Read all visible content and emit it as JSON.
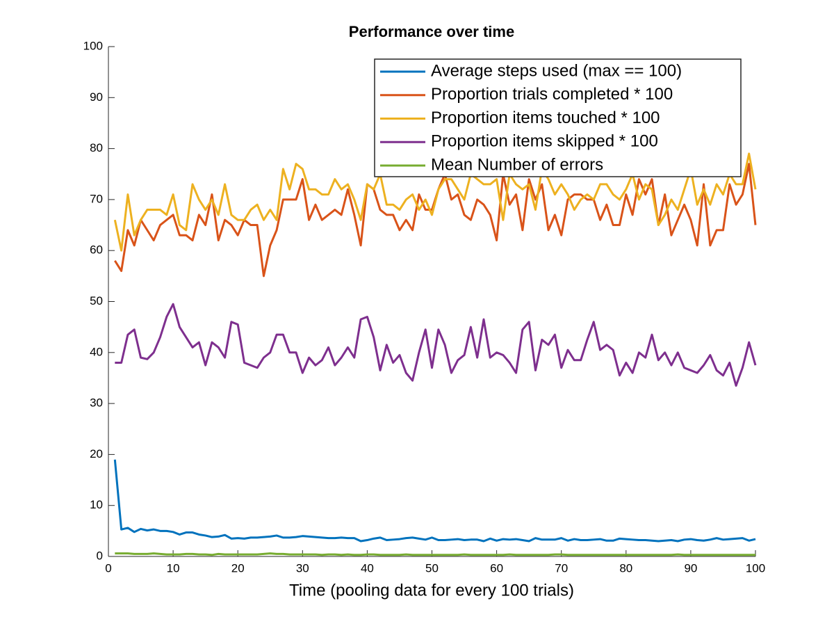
{
  "chart_data": {
    "type": "line",
    "title": "Performance over time",
    "x_label": "Time (pooling data for every 100 trials)",
    "x": [
      1,
      2,
      3,
      4,
      5,
      6,
      7,
      8,
      9,
      10,
      11,
      12,
      13,
      14,
      15,
      16,
      17,
      18,
      19,
      20,
      21,
      22,
      23,
      24,
      25,
      26,
      27,
      28,
      29,
      30,
      31,
      32,
      33,
      34,
      35,
      36,
      37,
      38,
      39,
      40,
      41,
      42,
      43,
      44,
      45,
      46,
      47,
      48,
      49,
      50,
      51,
      52,
      53,
      54,
      55,
      56,
      57,
      58,
      59,
      60,
      61,
      62,
      63,
      64,
      65,
      66,
      67,
      68,
      69,
      70,
      71,
      72,
      73,
      74,
      75,
      76,
      77,
      78,
      79,
      80,
      81,
      82,
      83,
      84,
      85,
      86,
      87,
      88,
      89,
      90,
      91,
      92,
      93,
      94,
      95,
      96,
      97,
      98,
      99,
      100
    ],
    "series": [
      {
        "name": "Average steps used (max == 100)",
        "color": "#0072bd",
        "values": [
          19,
          5.3,
          5.6,
          4.8,
          5.4,
          5.1,
          5.3,
          5,
          5,
          4.8,
          4.3,
          4.7,
          4.7,
          4.3,
          4.1,
          3.8,
          3.9,
          4.2,
          3.5,
          3.6,
          3.5,
          3.7,
          3.7,
          3.8,
          3.9,
          4.1,
          3.7,
          3.7,
          3.8,
          4,
          3.9,
          3.8,
          3.7,
          3.6,
          3.6,
          3.7,
          3.6,
          3.6,
          3,
          3.2,
          3.5,
          3.7,
          3.2,
          3.3,
          3.4,
          3.6,
          3.7,
          3.5,
          3.3,
          3.7,
          3.2,
          3.2,
          3.3,
          3.4,
          3.2,
          3.3,
          3.3,
          3,
          3.5,
          3.1,
          3.4,
          3.3,
          3.4,
          3.2,
          3,
          3.6,
          3.3,
          3.3,
          3.3,
          3.6,
          3.1,
          3.4,
          3.2,
          3.2,
          3.3,
          3.4,
          3.1,
          3.1,
          3.5,
          3.4,
          3.3,
          3.2,
          3.2,
          3.1,
          3,
          3.1,
          3.2,
          3,
          3.3,
          3.4,
          3.2,
          3.1,
          3.3,
          3.6,
          3.3,
          3.4,
          3.5,
          3.6,
          3.1,
          3.4
        ]
      },
      {
        "name": "Proportion trials completed * 100",
        "color": "#d95319",
        "values": [
          58,
          56,
          64,
          61,
          66,
          64,
          62,
          65,
          66,
          67,
          63,
          63,
          62,
          67,
          65,
          71,
          62,
          66,
          65,
          63,
          66,
          65,
          65,
          55,
          61,
          64,
          70,
          70,
          70,
          74,
          66,
          69,
          66,
          67,
          68,
          67,
          72,
          67,
          61,
          73,
          72,
          68,
          67,
          67,
          64,
          66,
          64,
          71,
          68,
          68,
          72,
          75,
          70,
          71,
          67,
          66,
          70,
          69,
          67,
          62,
          75,
          69,
          71,
          64,
          74,
          70,
          73,
          64,
          67,
          63,
          70,
          71,
          71,
          70,
          70,
          66,
          69,
          65,
          65,
          71,
          67,
          74,
          71,
          74,
          65,
          71,
          63,
          66,
          69,
          66,
          61,
          73,
          61,
          64,
          64,
          73,
          69,
          71,
          77,
          65
        ]
      },
      {
        "name": "Proportion items touched * 100",
        "color": "#edb120",
        "values": [
          66,
          60,
          71,
          63,
          66,
          68,
          68,
          68,
          67,
          71,
          65,
          64,
          73,
          70,
          68,
          70,
          67,
          73,
          67,
          66,
          66,
          68,
          69,
          66,
          68,
          66,
          76,
          72,
          77,
          76,
          72,
          72,
          71,
          71,
          74,
          72,
          73,
          70,
          66,
          73,
          72,
          75,
          69,
          69,
          68,
          70,
          71,
          68,
          70,
          67,
          72,
          74,
          74,
          72,
          70,
          75,
          74,
          73,
          73,
          74,
          66,
          75,
          73,
          72,
          73,
          68,
          76,
          74,
          71,
          73,
          71,
          68,
          70,
          71,
          70,
          73,
          73,
          71,
          70,
          72,
          75,
          70,
          73,
          72,
          65,
          67,
          70,
          68,
          72,
          76,
          69,
          72,
          69,
          73,
          71,
          75,
          73,
          73,
          79,
          72
        ]
      },
      {
        "name": "Proportion items skipped * 100",
        "color": "#7e2f8e",
        "values": [
          38,
          38,
          43.5,
          44.5,
          39,
          38.7,
          40,
          43,
          47,
          49.5,
          45,
          43,
          41,
          42,
          37.5,
          42,
          41,
          39,
          46,
          45.5,
          38,
          37.5,
          37,
          39,
          40,
          43.5,
          43.5,
          40,
          40,
          36,
          39,
          37.5,
          38.5,
          41,
          37.5,
          39,
          41,
          39,
          46.5,
          47,
          43,
          36.5,
          41.5,
          38,
          39.5,
          36,
          34.5,
          40,
          44.5,
          37,
          44.5,
          41.5,
          36,
          38.5,
          39.5,
          45,
          39,
          46.5,
          39,
          40,
          39.5,
          38,
          36,
          44.5,
          46,
          36.5,
          42.5,
          41.5,
          43.5,
          37,
          40.5,
          38.5,
          38.5,
          42.5,
          46,
          40.5,
          41.5,
          40.5,
          35.5,
          38,
          36,
          40,
          39,
          43.5,
          38.5,
          40,
          37.5,
          40,
          37,
          36.5,
          36,
          37.5,
          39.5,
          36.5,
          35.5,
          38,
          33.5,
          37,
          42,
          37.5
        ]
      },
      {
        "name": "Mean Number of errors",
        "color": "#77ac30",
        "values": [
          0.6,
          0.6,
          0.6,
          0.5,
          0.5,
          0.5,
          0.6,
          0.5,
          0.4,
          0.4,
          0.4,
          0.5,
          0.5,
          0.4,
          0.4,
          0.3,
          0.5,
          0.4,
          0.4,
          0.4,
          0.4,
          0.4,
          0.4,
          0.5,
          0.6,
          0.5,
          0.5,
          0.4,
          0.4,
          0.4,
          0.4,
          0.4,
          0.3,
          0.4,
          0.4,
          0.3,
          0.4,
          0.3,
          0.3,
          0.4,
          0.4,
          0.3,
          0.3,
          0.3,
          0.3,
          0.4,
          0.3,
          0.3,
          0.3,
          0.3,
          0.3,
          0.3,
          0.3,
          0.3,
          0.4,
          0.3,
          0.3,
          0.3,
          0.3,
          0.3,
          0.3,
          0.4,
          0.3,
          0.3,
          0.3,
          0.3,
          0.3,
          0.3,
          0.4,
          0.4,
          0.3,
          0.3,
          0.3,
          0.3,
          0.3,
          0.3,
          0.3,
          0.3,
          0.3,
          0.3,
          0.3,
          0.3,
          0.3,
          0.3,
          0.3,
          0.3,
          0.3,
          0.4,
          0.3,
          0.3,
          0.3,
          0.3,
          0.3,
          0.3,
          0.3,
          0.3,
          0.3,
          0.3,
          0.3,
          0.3
        ]
      }
    ],
    "xlim": [
      0,
      100
    ],
    "xticks": [
      0,
      10,
      20,
      30,
      40,
      50,
      60,
      70,
      80,
      90,
      100
    ],
    "ylim": [
      0,
      100
    ],
    "yticks": [
      0,
      10,
      20,
      30,
      40,
      50,
      60,
      70,
      80,
      90,
      100
    ],
    "grid": false,
    "legend": "top-right"
  }
}
